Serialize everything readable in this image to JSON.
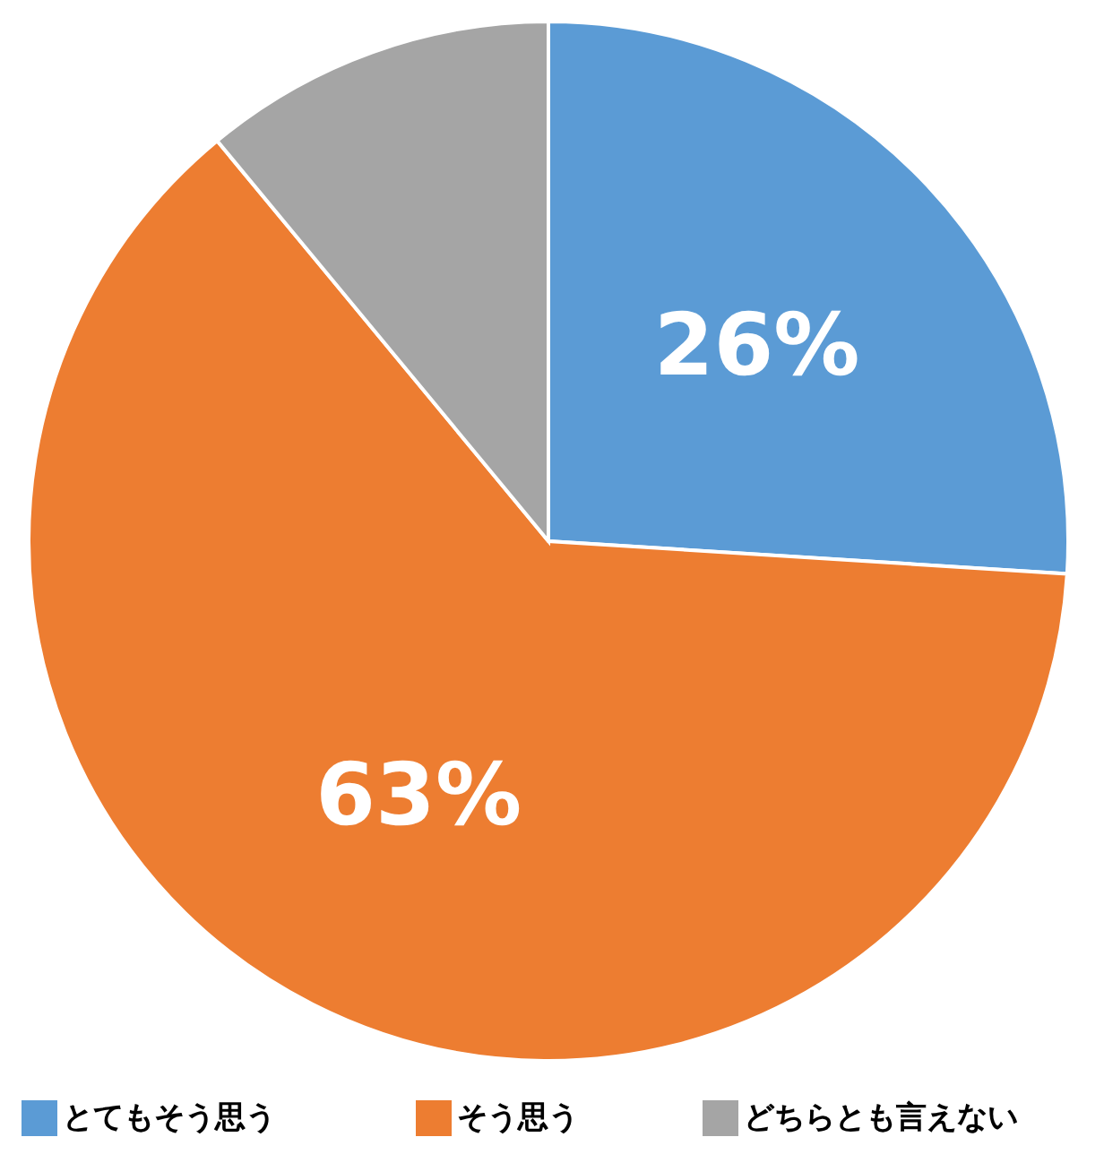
{
  "chart_data": {
    "type": "pie",
    "categories": [
      "とてもそう思う",
      "そう思う",
      "どちらとも言えない"
    ],
    "values": [
      26,
      63,
      11
    ],
    "colors": [
      "#5b9bd5",
      "#ed7d31",
      "#a5a5a5"
    ],
    "value_labels": [
      "26%",
      "63%",
      null
    ],
    "legend": "bottom"
  }
}
